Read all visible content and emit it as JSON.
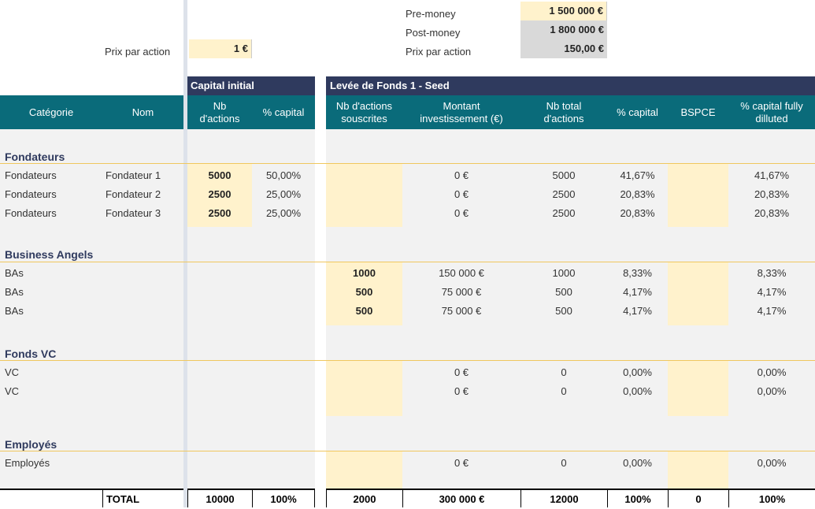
{
  "top": {
    "prix_label": "Prix par action",
    "prix_value": "1 €",
    "pre_money_label": "Pre-money",
    "pre_money_value": "1 500 000 €",
    "post_money_label": "Post-money",
    "post_money_value": "1 800 000 €",
    "prix2_label": "Prix par action",
    "prix2_value": "150,00 €"
  },
  "section_headers": {
    "capital": "Capital initial",
    "seed": "Levée de Fonds 1 - Seed"
  },
  "columns": {
    "categorie": "Catégorie",
    "nom": "Nom",
    "nb_actions": "Nb d'actions",
    "pct_capital": "% capital",
    "nb_souscrites": "Nb d'actions souscrites",
    "montant": "Montant investissement (€)",
    "nb_total": "Nb total d'actions",
    "pct_capital2": "% capital",
    "bspce": "BSPCE",
    "pct_diluted": "% capital fully dilluted"
  },
  "groups": {
    "fondateurs": "Fondateurs",
    "business_angels": "Business Angels",
    "fonds_vc": "Fonds VC",
    "employes": "Employés"
  },
  "rows": [
    {
      "cat": "Fondateurs",
      "nom": "Fondateur 1",
      "nb": "5000",
      "pct": "50,00%",
      "sousc": "",
      "montant": "0 €",
      "total": "5000",
      "pct2": "41,67%",
      "diluted": "41,67%"
    },
    {
      "cat": "Fondateurs",
      "nom": "Fondateur 2",
      "nb": "2500",
      "pct": "25,00%",
      "sousc": "",
      "montant": "0 €",
      "total": "2500",
      "pct2": "20,83%",
      "diluted": "20,83%"
    },
    {
      "cat": "Fondateurs",
      "nom": "Fondateur 3",
      "nb": "2500",
      "pct": "25,00%",
      "sousc": "",
      "montant": "0 €",
      "total": "2500",
      "pct2": "20,83%",
      "diluted": "20,83%"
    },
    {
      "cat": "BAs",
      "nom": "",
      "nb": "",
      "pct": "",
      "sousc": "1000",
      "montant": "150 000 €",
      "total": "1000",
      "pct2": "8,33%",
      "diluted": "8,33%"
    },
    {
      "cat": "BAs",
      "nom": "",
      "nb": "",
      "pct": "",
      "sousc": "500",
      "montant": "75 000 €",
      "total": "500",
      "pct2": "4,17%",
      "diluted": "4,17%"
    },
    {
      "cat": "BAs",
      "nom": "",
      "nb": "",
      "pct": "",
      "sousc": "500",
      "montant": "75 000 €",
      "total": "500",
      "pct2": "4,17%",
      "diluted": "4,17%"
    },
    {
      "cat": "VC",
      "nom": "",
      "nb": "",
      "pct": "",
      "sousc": "",
      "montant": "0 €",
      "total": "0",
      "pct2": "0,00%",
      "diluted": "0,00%"
    },
    {
      "cat": "VC",
      "nom": "",
      "nb": "",
      "pct": "",
      "sousc": "",
      "montant": "0 €",
      "total": "0",
      "pct2": "0,00%",
      "diluted": "0,00%"
    },
    {
      "cat": "Employés",
      "nom": "",
      "nb": "",
      "pct": "",
      "sousc": "",
      "montant": "0 €",
      "total": "0",
      "pct2": "0,00%",
      "diluted": "0,00%"
    }
  ],
  "total": {
    "label": "TOTAL",
    "nb": "10000",
    "pct": "100%",
    "sousc": "2000",
    "montant": "300 000 €",
    "nb_total": "12000",
    "pct2": "100%",
    "bspce": "0",
    "diluted": "100%"
  }
}
